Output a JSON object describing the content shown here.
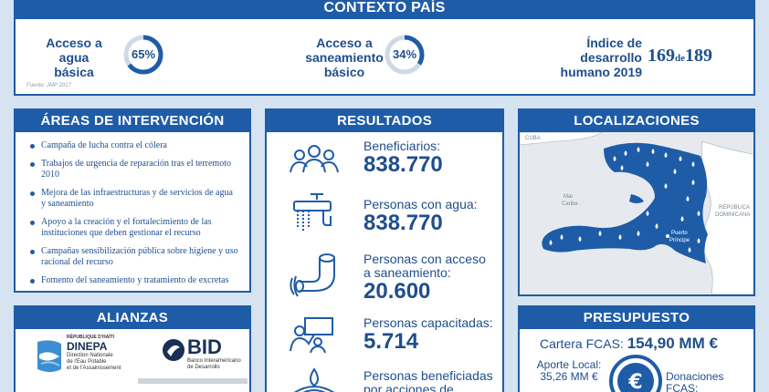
{
  "context": {
    "title": "CONTEXTO PAÍS",
    "water": {
      "label_line1": "Acceso a",
      "label_line2": "agua",
      "label_line3": "básica",
      "percent": "65%",
      "fraction": 0.65
    },
    "sanitation": {
      "label_line1": "Acceso a",
      "label_line2": "saneamiento",
      "label_line3": "básico",
      "percent": "34%",
      "fraction": 0.34
    },
    "hdi": {
      "label_line1": "Índice de",
      "label_line2": "desarrollo",
      "label_line3": "humano 2019",
      "rank": "169",
      "of": "de",
      "total": "189"
    },
    "source": "Fuente: JMP 2017"
  },
  "areas": {
    "title": "ÁREAS DE INTERVENCIÓN",
    "items": [
      "Campaña de lucha contra el cólera",
      "Trabajos de urgencia de reparación tras el terremoto 2010",
      "Mejora de las infraestructuras y de servicios de agua y saneamiento",
      "Apoyo a la creación y el fortalecimiento de las instituciones que deben gestionar el recurso",
      "Campañas sensibilización pública sobre  higiene y uso racional del recurso",
      "Fomento del saneamiento y tratamiento de excretas"
    ]
  },
  "alianzas": {
    "title": "ALIANZAS",
    "dinepa": {
      "top": "RÉPUBLIQUE D'HAÏTI",
      "name": "DINEPA",
      "line1": "Direction Nationale",
      "line2": "de l'Eau Potable",
      "line3": "et de l'Assainissement"
    },
    "bid": {
      "name": "BID",
      "line1": "Banco Interamericano",
      "line2": "de Desarrollo"
    }
  },
  "resultados": {
    "title": "RESULTADOS",
    "items": [
      {
        "label_line1": "Beneficiarios:",
        "label_line2": "",
        "value": "838.770",
        "icon": "people-icon"
      },
      {
        "label_line1": "Personas con agua:",
        "label_line2": "",
        "value": "838.770",
        "icon": "faucet-icon"
      },
      {
        "label_line1": "Personas con acceso",
        "label_line2": "a saneamiento:",
        "value": "20.600",
        "icon": "pipe-icon"
      },
      {
        "label_line1": "Personas capacitadas:",
        "label_line2": "",
        "value": "5.714",
        "icon": "training-icon"
      },
      {
        "label_line1": "Personas beneficiadas",
        "label_line2": "por acciones de urgencia",
        "value": "",
        "icon": "drop-icon"
      }
    ]
  },
  "localizaciones": {
    "title": "LOCALIZACIONES",
    "labels": {
      "cuba": "CUBA",
      "sea_line1": "Mar",
      "sea_line2": "Caribe",
      "dr_line1": "REPÚBLICA",
      "dr_line2": "DOMINICANA",
      "capital_line1": "Puerto",
      "capital_line2": "Príncipe"
    }
  },
  "presupuesto": {
    "title": "PRESUPUESTO",
    "cartera_label": "Cartera FCAS:",
    "cartera_value": "154,90 MM €",
    "local_label": "Aporte Local:",
    "local_value": "35,26 MM €",
    "donaciones_line1": "Donaciones",
    "donaciones_line2": "FCAS:",
    "coin_symbol": "€"
  },
  "colors": {
    "primary": "#1f5ca8",
    "background": "#d6e3f0",
    "text": "#1f4e8c"
  }
}
